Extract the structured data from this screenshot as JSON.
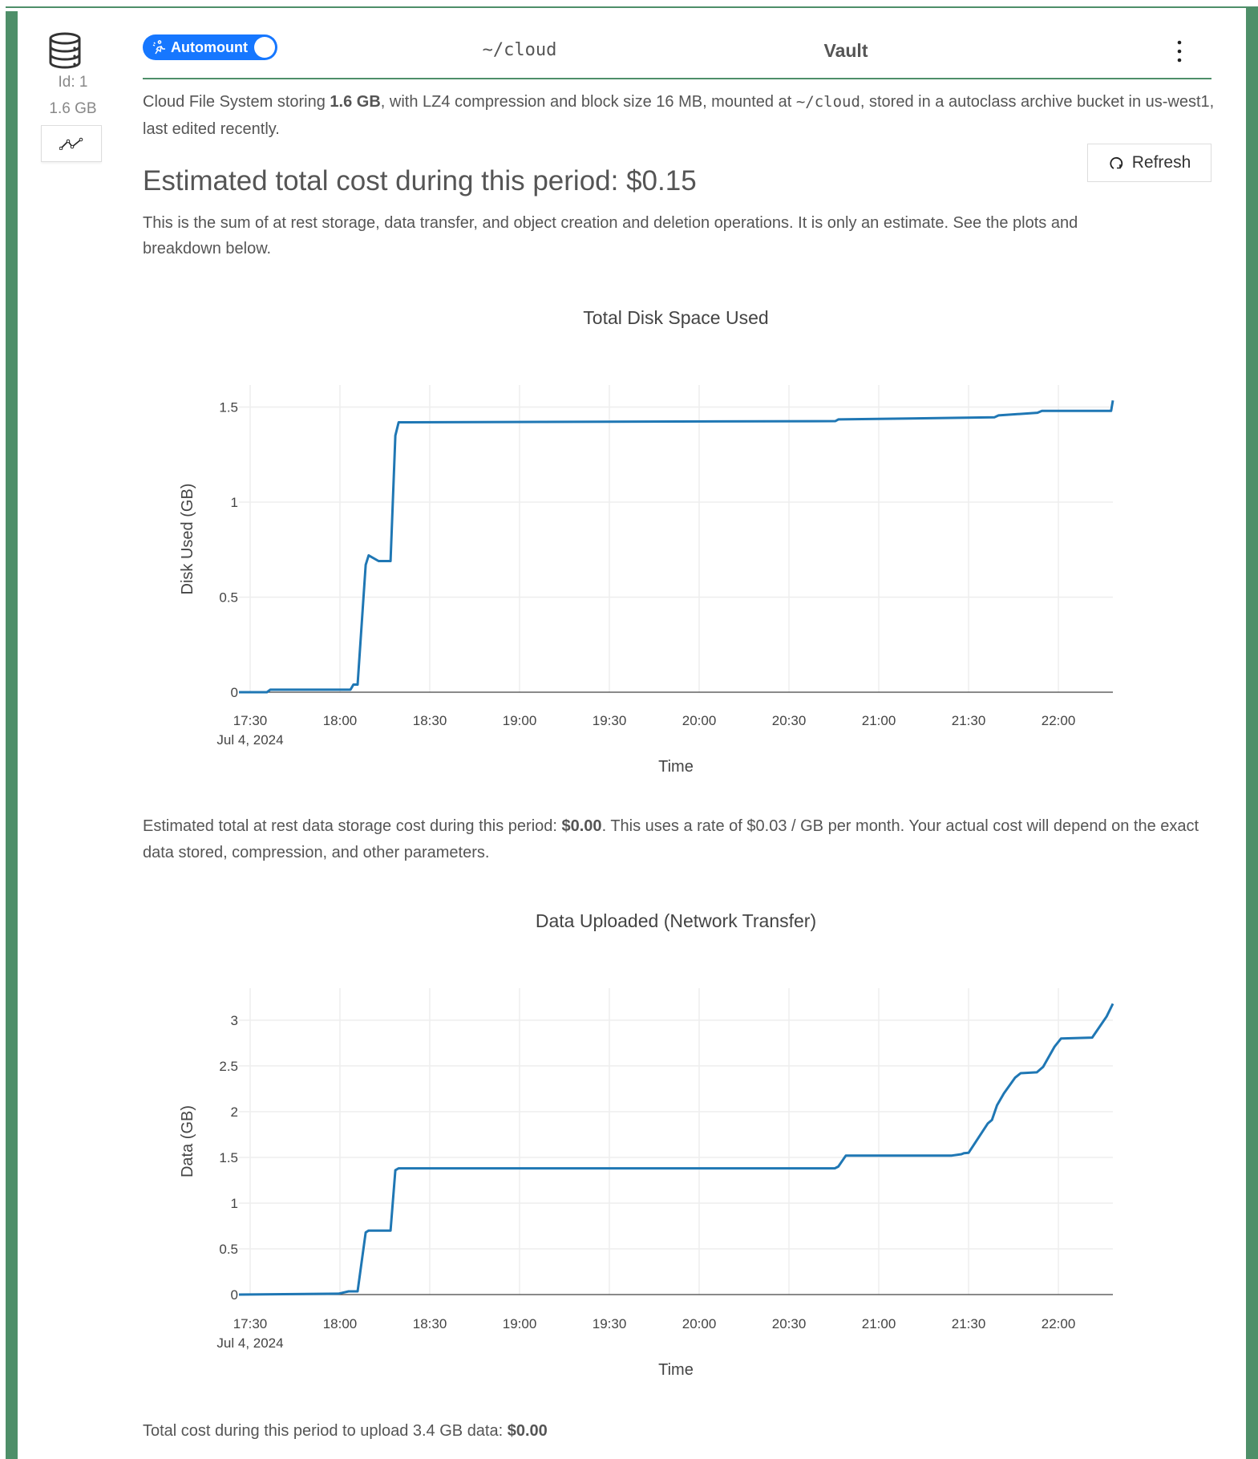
{
  "sidebar": {
    "id_label": "Id: 1",
    "size_label": "1.6 GB",
    "icon": "database-icon",
    "chart_button_icon": "line-chart-icon"
  },
  "header": {
    "automount_label": "Automount",
    "automount_on": true,
    "path": "~/cloud",
    "name": "Vault",
    "menu_icon": "kebab-menu-icon"
  },
  "description": {
    "prefix": "Cloud File System storing ",
    "size": "1.6 GB",
    "middle": ", with LZ4 compression and block size 16 MB, mounted at ",
    "path": "~/cloud",
    "suffix": ", stored in a autoclass archive bucket in us-west1, last edited recently."
  },
  "refresh_label": "Refresh",
  "total_heading": "Estimated total cost during this period: $0.15",
  "total_note": "This is the sum of at rest storage, data transfer, and object creation and deletion operations. It is only an estimate. See the plots and breakdown below.",
  "storage_note": {
    "prefix": "Estimated total at rest data storage cost during this period: ",
    "cost": "$0.00",
    "suffix": ". This uses a rate of $0.03 / GB per month. Your actual cost will depend on the exact data stored, compression, and other parameters."
  },
  "upload_note": {
    "prefix": "Total cost during this period to upload 3.4 GB data: ",
    "cost": "$0.00"
  },
  "colors": {
    "accent_green": "#4e8f69",
    "toggle_blue": "#1677ff",
    "line_blue": "#1f77b4"
  },
  "chart_data": [
    {
      "type": "line",
      "title": "Total Disk Space Used",
      "xlabel": "Time",
      "ylabel": "Disk Used (GB)",
      "x_date_label": "Jul 4, 2024",
      "xticks": [
        "17:30",
        "18:00",
        "18:30",
        "19:00",
        "19:30",
        "20:00",
        "20:30",
        "21:00",
        "21:30",
        "22:00"
      ],
      "yticks": [
        0,
        0.5,
        1,
        1.5
      ],
      "ytick_labels": [
        "0",
        "0.5",
        "1",
        "1.5"
      ],
      "xlim": [
        "17:26:15",
        "22:18:12"
      ],
      "ylim": [
        0,
        1.616
      ],
      "grid": true,
      "series": [
        {
          "name": "Disk Used",
          "x": [
            "17:26:15",
            "17:35:36",
            "17:36:42",
            "18:03:30",
            "18:04:30",
            "18:05:54",
            "18:08:36",
            "18:09:36",
            "18:12:54",
            "18:16:54",
            "18:18:30",
            "18:19:36",
            "20:45:30",
            "20:46:30",
            "21:38:36",
            "21:40:00",
            "21:53:00",
            "21:54:30",
            "22:17:36",
            "22:18:12"
          ],
          "y": [
            0,
            0,
            0.013,
            0.013,
            0.04,
            0.04,
            0.67,
            0.72,
            0.69,
            0.69,
            1.35,
            1.42,
            1.426,
            1.435,
            1.446,
            1.456,
            1.47,
            1.48,
            1.48,
            1.535
          ]
        }
      ]
    },
    {
      "type": "line",
      "title": "Data Uploaded (Network Transfer)",
      "xlabel": "Time",
      "ylabel": "Data (GB)",
      "x_date_label": "Jul 4, 2024",
      "xticks": [
        "17:30",
        "18:00",
        "18:30",
        "19:00",
        "19:30",
        "20:00",
        "20:30",
        "21:00",
        "21:30",
        "22:00"
      ],
      "yticks": [
        0,
        0.5,
        1,
        1.5,
        2,
        2.5,
        3
      ],
      "ytick_labels": [
        "0",
        "0.5",
        "1",
        "1.5",
        "2",
        "2.5",
        "3"
      ],
      "xlim": [
        "17:26:15",
        "22:18:12"
      ],
      "ylim": [
        0,
        3.35
      ],
      "grid": true,
      "series": [
        {
          "name": "Data Uploaded",
          "x": [
            "17:26:15",
            "17:59:30",
            "18:02:54",
            "18:05:54",
            "18:08:36",
            "18:09:36",
            "18:16:54",
            "18:18:30",
            "18:19:36",
            "20:45:18",
            "20:46:30",
            "20:49:00",
            "21:24:24",
            "21:27:36",
            "21:28:24",
            "21:30:00",
            "21:36:24",
            "21:37:48",
            "21:39:30",
            "21:41:48",
            "21:45:30",
            "21:47:24",
            "21:52:48",
            "21:54:54",
            "21:58:42",
            "22:00:54",
            "22:11:18",
            "22:16:06",
            "22:18:12"
          ],
          "y": [
            0,
            0.01,
            0.035,
            0.035,
            0.68,
            0.7,
            0.7,
            1.36,
            1.38,
            1.38,
            1.4,
            1.52,
            1.52,
            1.535,
            1.545,
            1.55,
            1.87,
            1.91,
            2.07,
            2.2,
            2.37,
            2.42,
            2.43,
            2.49,
            2.71,
            2.8,
            2.81,
            3.04,
            3.18
          ]
        }
      ]
    }
  ]
}
